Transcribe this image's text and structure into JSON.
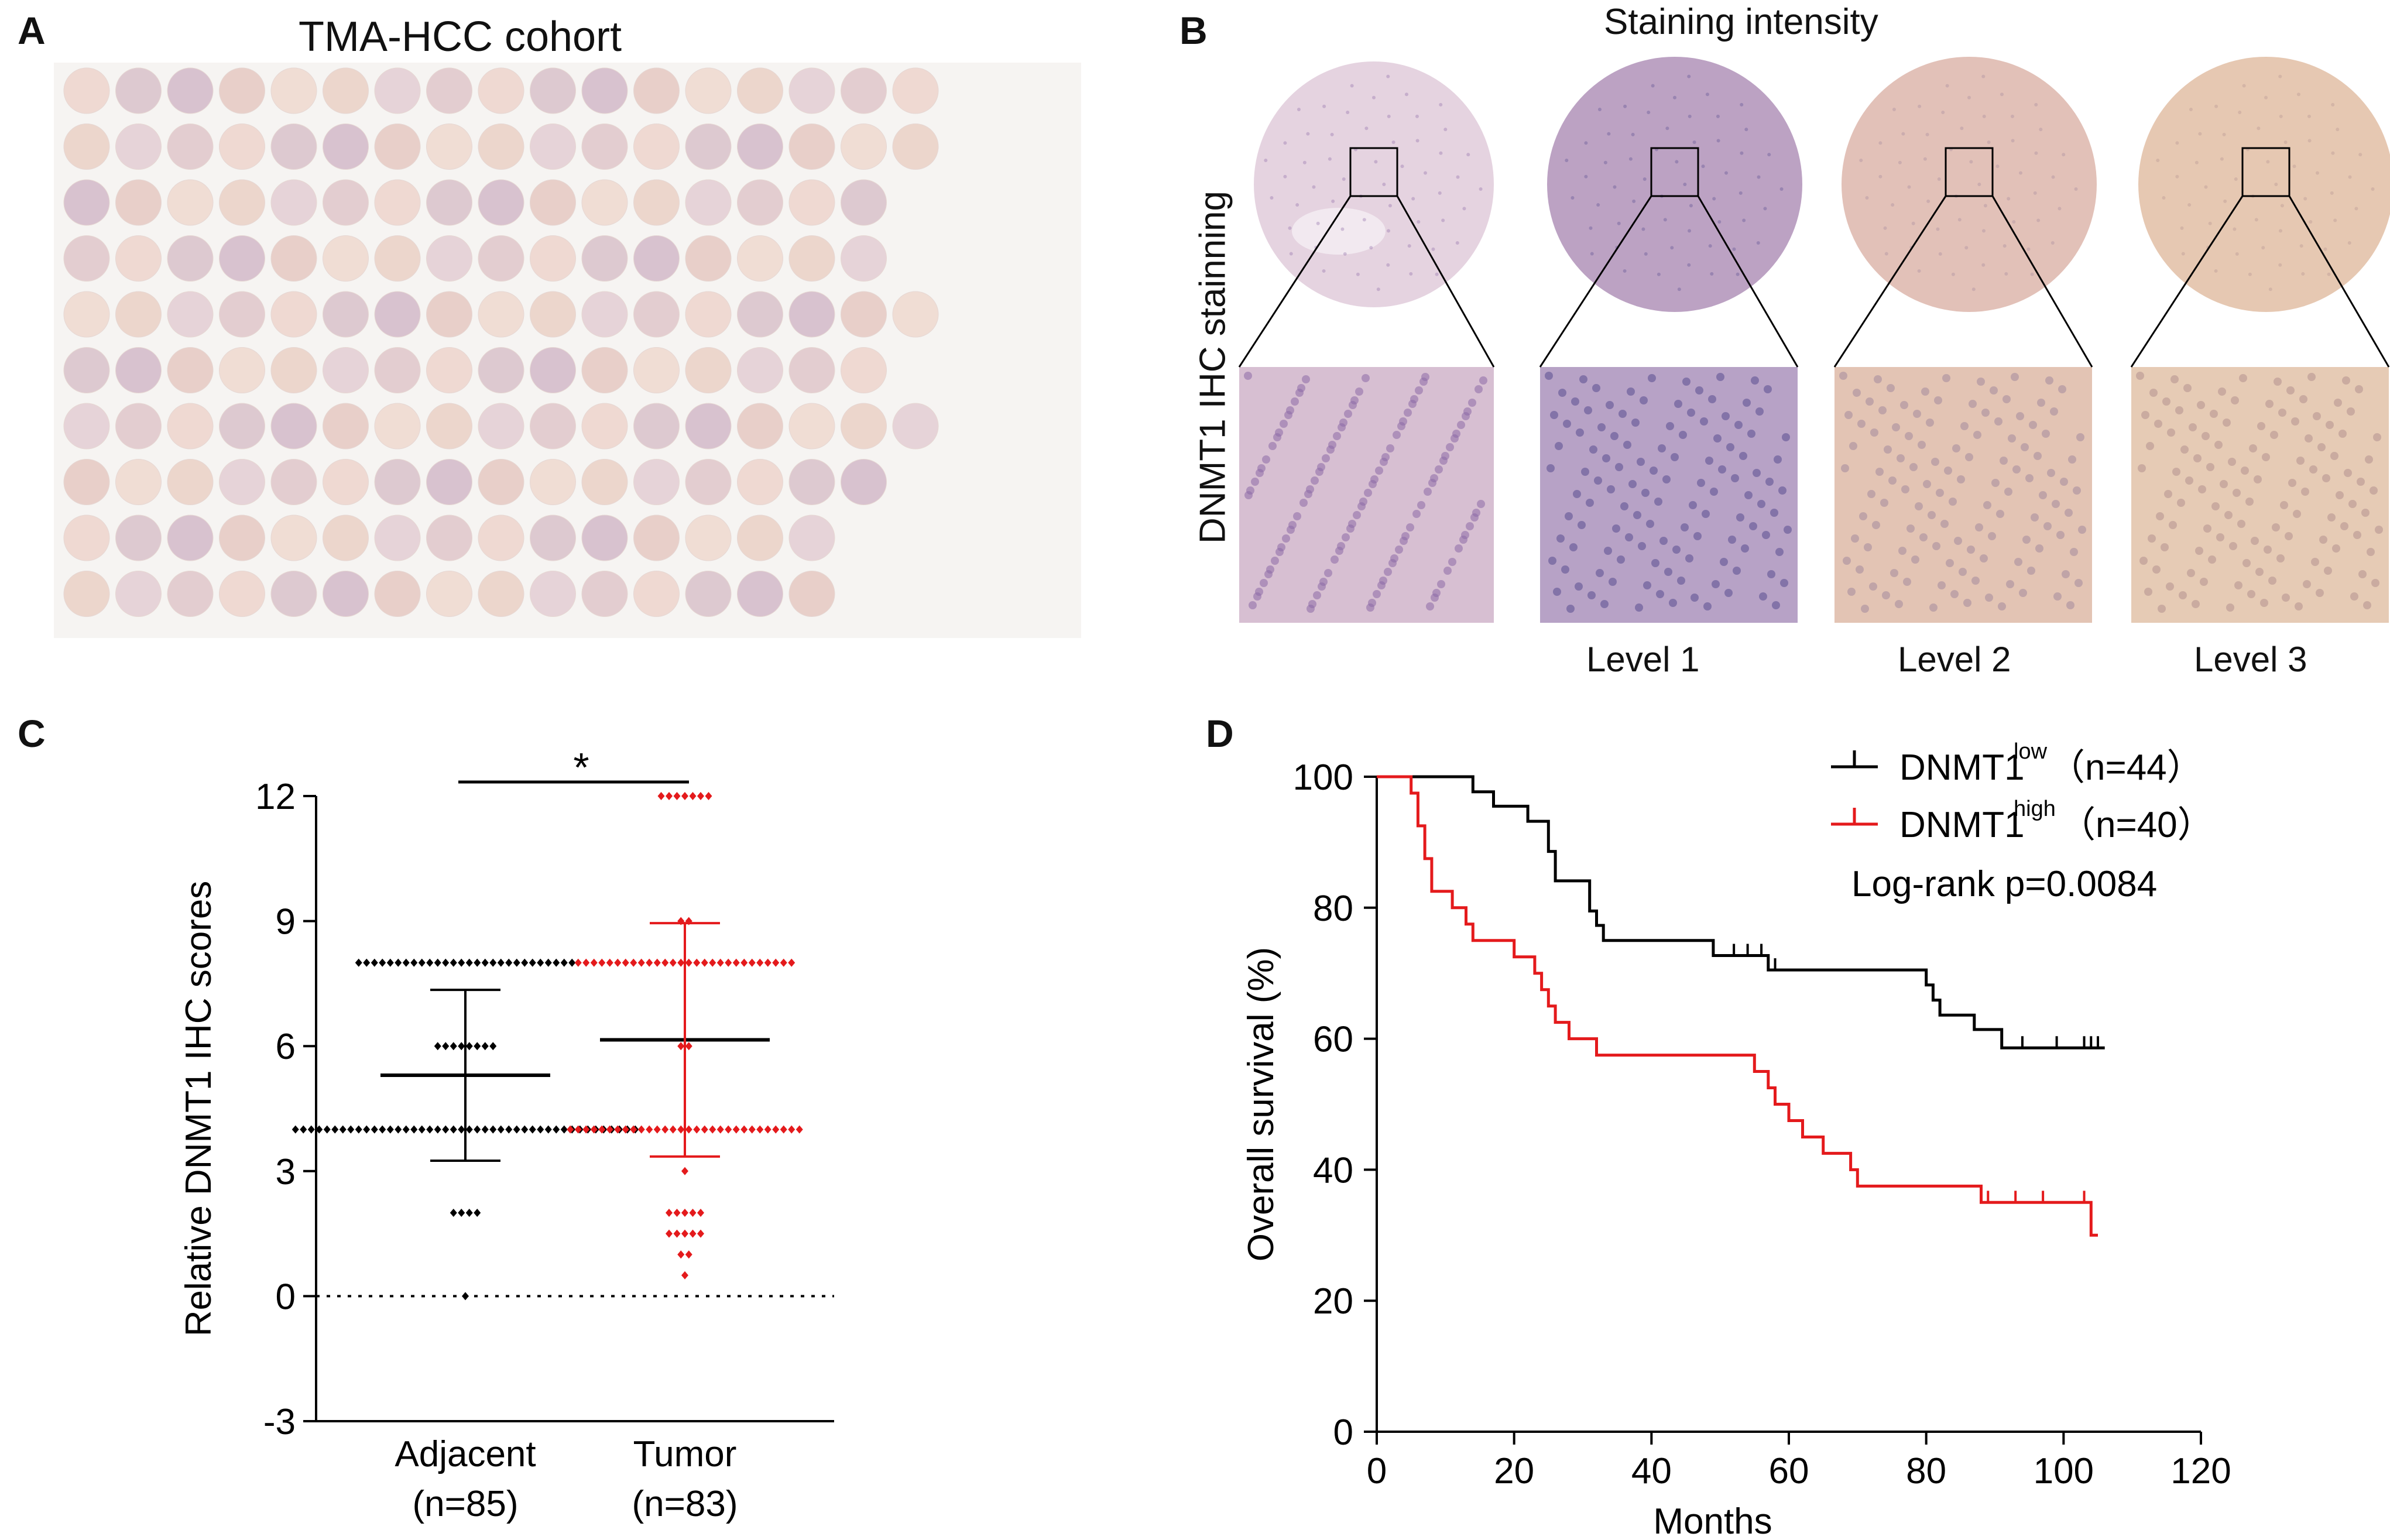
{
  "panels": {
    "A": {
      "letter": "A",
      "title": "TMA-HCC cohort",
      "grid": {
        "rows": 10,
        "row_counts": [
          17,
          17,
          16,
          16,
          17,
          16,
          17,
          16,
          15,
          15
        ],
        "colors": [
          "#efd9d2",
          "#e8cfc9",
          "#e6d3d8",
          "#ddc9d0",
          "#f0ddd4",
          "#e3cdd0",
          "#d8c2cf",
          "#ecd6cc"
        ]
      }
    },
    "B": {
      "letter": "B",
      "title": "Staining intensity",
      "ylabel": "DNMT1 IHC stainning",
      "level_labels": [
        "Level 1",
        "Level 2",
        "Level 3"
      ],
      "core_colors": [
        "#dcc4d6",
        "#bca2c3",
        "#e2c1b8",
        "#e6c8b2"
      ],
      "zoom_colors": [
        "#d7bfd2",
        "#b7a2c6",
        "#e3c4b4",
        "#e6cbb5"
      ],
      "dot_colors": [
        "#8c69a6",
        "#5a4d8f",
        "#a48a9c",
        "#b2918e"
      ]
    },
    "C": {
      "letter": "C",
      "significance": "*",
      "chart_data": {
        "type": "scatter",
        "ylabel": "Relative DNMT1 IHC scores",
        "ylim": [
          -3,
          12
        ],
        "yticks": [
          12,
          9,
          6,
          3,
          0,
          -3
        ],
        "ytick_labels": [
          "12",
          "9",
          "6",
          "3",
          "0",
          "-3"
        ],
        "reference_line": 0,
        "groups": [
          {
            "name": "Adjacent",
            "n_label": "(n=85)",
            "color": "#000000",
            "mean": 5.3,
            "sd_low": 3.25,
            "sd_high": 7.35,
            "values": [
              {
                "y": 8,
                "count": 28
              },
              {
                "y": 6,
                "count": 8
              },
              {
                "y": 4,
                "count": 44
              },
              {
                "y": 2,
                "count": 4
              },
              {
                "y": 0,
                "count": 1
              }
            ]
          },
          {
            "name": "Tumor",
            "n_label": "(n=83)",
            "color": "#e41a1c",
            "mean": 6.15,
            "sd_low": 3.35,
            "sd_high": 8.95,
            "values": [
              {
                "y": 12,
                "count": 7
              },
              {
                "y": 9,
                "count": 2
              },
              {
                "y": 8,
                "count": 28
              },
              {
                "y": 6,
                "count": 2
              },
              {
                "y": 4,
                "count": 30
              },
              {
                "y": 3,
                "count": 1
              },
              {
                "y": 2,
                "count": 5
              },
              {
                "y": 1.5,
                "count": 5
              },
              {
                "y": 1,
                "count": 2
              },
              {
                "y": 0.5,
                "count": 1
              }
            ]
          }
        ]
      }
    },
    "D": {
      "letter": "D",
      "chart_data": {
        "type": "line",
        "xlabel": "Months",
        "ylabel": "Overall survival (%)",
        "xlim": [
          0,
          120
        ],
        "ylim": [
          0,
          100
        ],
        "xticks": [
          0,
          20,
          40,
          60,
          80,
          100,
          120
        ],
        "xtick_labels": [
          "0",
          "20",
          "40",
          "60",
          "80",
          "100",
          "120"
        ],
        "yticks": [
          0,
          20,
          40,
          60,
          80,
          100
        ],
        "ytick_labels": [
          "0",
          "20",
          "40",
          "60",
          "80",
          "100"
        ],
        "annotation": "Log-rank p=0.0084",
        "series": [
          {
            "name": "DNMT1",
            "sup": "low",
            "n_label": "（n=44）",
            "color": "#000000",
            "points": [
              [
                0,
                100
              ],
              [
                14,
                100
              ],
              [
                14,
                97.7
              ],
              [
                17,
                97.7
              ],
              [
                17,
                95.5
              ],
              [
                22,
                95.5
              ],
              [
                22,
                93.2
              ],
              [
                25,
                93.2
              ],
              [
                25,
                88.6
              ],
              [
                26,
                88.6
              ],
              [
                26,
                84.1
              ],
              [
                31,
                84.1
              ],
              [
                31,
                79.5
              ],
              [
                32,
                79.5
              ],
              [
                32,
                77.3
              ],
              [
                33,
                77.3
              ],
              [
                33,
                75
              ],
              [
                49,
                75
              ],
              [
                49,
                72.7
              ],
              [
                57,
                72.7
              ],
              [
                57,
                70.5
              ],
              [
                80,
                70.5
              ],
              [
                80,
                68.2
              ],
              [
                81,
                68.2
              ],
              [
                81,
                65.9
              ],
              [
                82,
                65.9
              ],
              [
                82,
                63.6
              ],
              [
                87,
                63.6
              ],
              [
                87,
                61.4
              ],
              [
                91,
                61.4
              ],
              [
                91,
                58.6
              ],
              [
                106,
                58.6
              ]
            ],
            "censors": [
              [
                52,
                72.7
              ],
              [
                54,
                72.7
              ],
              [
                56,
                72.7
              ],
              [
                58,
                70.5
              ],
              [
                94,
                58.6
              ],
              [
                99,
                58.6
              ],
              [
                103,
                58.6
              ],
              [
                104,
                58.6
              ],
              [
                105,
                58.6
              ]
            ]
          },
          {
            "name": "DNMT1",
            "sup": "high",
            "n_label": "（n=40）",
            "color": "#e41a1c",
            "points": [
              [
                0,
                100
              ],
              [
                5,
                100
              ],
              [
                5,
                97.5
              ],
              [
                6,
                97.5
              ],
              [
                6,
                92.5
              ],
              [
                7,
                92.5
              ],
              [
                7,
                87.5
              ],
              [
                8,
                87.5
              ],
              [
                8,
                82.5
              ],
              [
                11,
                82.5
              ],
              [
                11,
                80
              ],
              [
                13,
                80
              ],
              [
                13,
                77.5
              ],
              [
                14,
                77.5
              ],
              [
                14,
                75
              ],
              [
                20,
                75
              ],
              [
                20,
                72.5
              ],
              [
                23,
                72.5
              ],
              [
                23,
                70
              ],
              [
                24,
                70
              ],
              [
                24,
                67.5
              ],
              [
                25,
                67.5
              ],
              [
                25,
                65
              ],
              [
                26,
                65
              ],
              [
                26,
                62.5
              ],
              [
                28,
                62.5
              ],
              [
                28,
                60
              ],
              [
                32,
                60
              ],
              [
                32,
                57.5
              ],
              [
                55,
                57.5
              ],
              [
                55,
                55
              ],
              [
                57,
                55
              ],
              [
                57,
                52.5
              ],
              [
                58,
                52.5
              ],
              [
                58,
                50
              ],
              [
                60,
                50
              ],
              [
                60,
                47.5
              ],
              [
                62,
                47.5
              ],
              [
                62,
                45
              ],
              [
                65,
                45
              ],
              [
                65,
                42.5
              ],
              [
                69,
                42.5
              ],
              [
                69,
                40
              ],
              [
                70,
                40
              ],
              [
                70,
                37.5
              ],
              [
                88,
                37.5
              ],
              [
                88,
                35
              ],
              [
                104,
                35
              ],
              [
                104,
                30
              ],
              [
                105,
                30
              ]
            ],
            "censors": [
              [
                89,
                35
              ],
              [
                93,
                35
              ],
              [
                97,
                35
              ],
              [
                103,
                35
              ],
              [
                104,
                30
              ]
            ]
          }
        ]
      }
    }
  }
}
